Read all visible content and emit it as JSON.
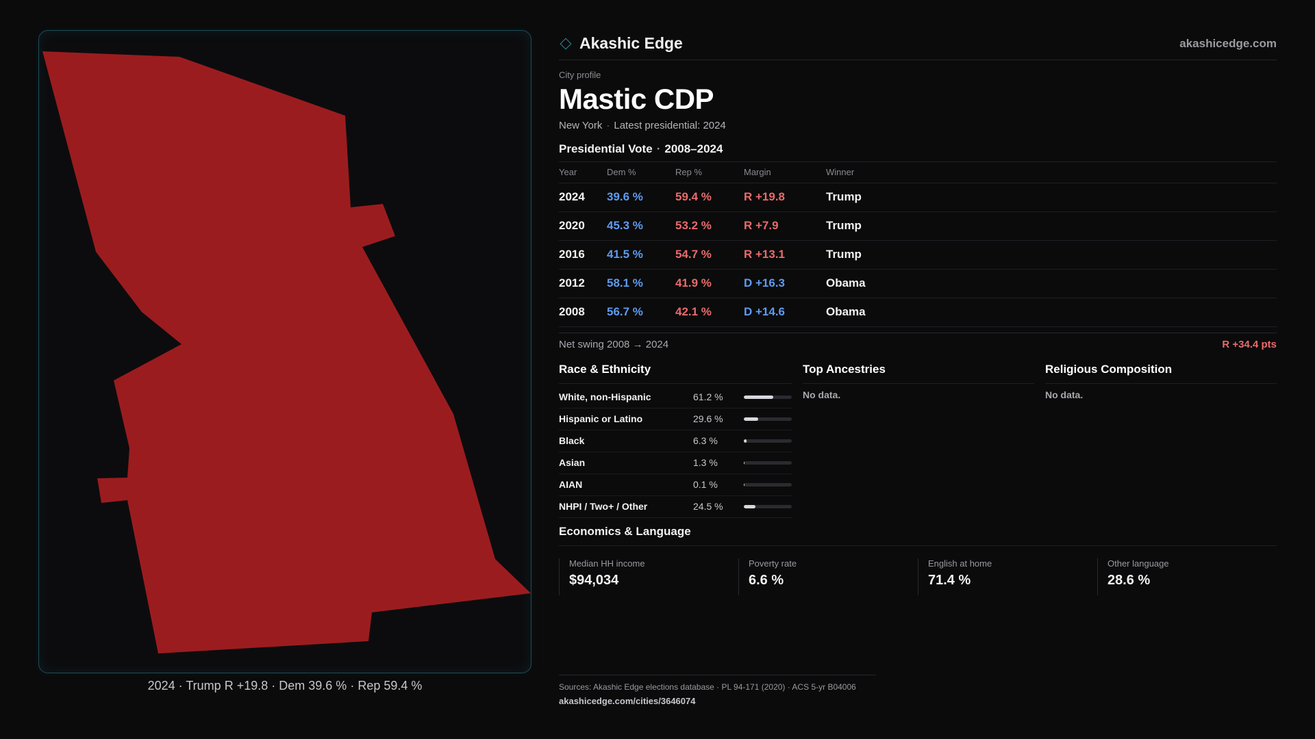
{
  "brand": {
    "name": "Akashic Edge",
    "url": "akashicedge.com",
    "icon": "diamond-icon",
    "accent": "#2b8fa0"
  },
  "map": {
    "fill_color": "#9b1c1f",
    "caption": {
      "year": "2024",
      "winner": "Trump",
      "margin": "R +19.8",
      "dem": "Dem 39.6 %",
      "rep": "Rep 59.4 %",
      "sep": "·"
    }
  },
  "profile": {
    "eyebrow": "City profile",
    "title": "Mastic CDP",
    "state": "New York",
    "latest": "Latest presidential: 2024",
    "sep": "·"
  },
  "vote": {
    "title": "Presidential Vote",
    "range": "2008–2024",
    "sep": "·",
    "headers": {
      "year": "Year",
      "dem": "Dem %",
      "rep": "Rep %",
      "margin": "Margin",
      "winner": "Winner"
    },
    "rows": [
      {
        "year": "2024",
        "dem": "39.6 %",
        "rep": "59.4 %",
        "margin": "R +19.8",
        "party": "rep",
        "winner": "Trump"
      },
      {
        "year": "2020",
        "dem": "45.3 %",
        "rep": "53.2 %",
        "margin": "R +7.9",
        "party": "rep",
        "winner": "Trump"
      },
      {
        "year": "2016",
        "dem": "41.5 %",
        "rep": "54.7 %",
        "margin": "R +13.1",
        "party": "rep",
        "winner": "Trump"
      },
      {
        "year": "2012",
        "dem": "58.1 %",
        "rep": "41.9 %",
        "margin": "D +16.3",
        "party": "dem",
        "winner": "Obama"
      },
      {
        "year": "2008",
        "dem": "56.7 %",
        "rep": "42.1 %",
        "margin": "D +14.6",
        "party": "dem",
        "winner": "Obama"
      }
    ],
    "swing_label": "Net swing 2008 → 2024",
    "swing_value": "R +34.4 pts",
    "colors": {
      "dem": "#5f9bf0",
      "rep": "#ea6b6b"
    }
  },
  "race": {
    "title": "Race & Ethnicity",
    "rows": [
      {
        "name": "White, non-Hispanic",
        "value": "61.2 %",
        "fraction": 0.612
      },
      {
        "name": "Hispanic or Latino",
        "value": "29.6 %",
        "fraction": 0.296
      },
      {
        "name": "Black",
        "value": "6.3 %",
        "fraction": 0.063
      },
      {
        "name": "Asian",
        "value": "1.3 %",
        "fraction": 0.013
      },
      {
        "name": "AIAN",
        "value": "0.1 %",
        "fraction": 0.001
      },
      {
        "name": "NHPI / Two+ / Other",
        "value": "24.5 %",
        "fraction": 0.245
      }
    ]
  },
  "ancestries": {
    "title": "Top Ancestries",
    "empty": "No data."
  },
  "religion": {
    "title": "Religious Composition",
    "empty": "No data."
  },
  "economics": {
    "title": "Economics & Language",
    "cards": [
      {
        "label": "Median HH income",
        "value": "$94,034"
      },
      {
        "label": "Poverty rate",
        "value": "6.6 %"
      },
      {
        "label": "English at home",
        "value": "71.4 %"
      },
      {
        "label": "Other language",
        "value": "28.6 %"
      }
    ]
  },
  "footer": {
    "sources": "Sources: Akashic Edge elections database · PL 94-171 (2020) · ACS 5-yr B04006",
    "url": "akashicedge.com/cities/3646074"
  }
}
